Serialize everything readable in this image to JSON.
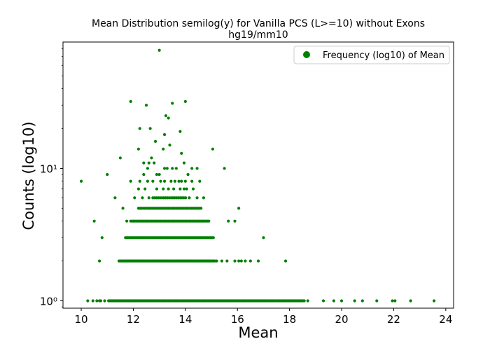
{
  "chart_data": {
    "type": "scatter",
    "title": "Mean Distribution semilog(y) for Vanilla PCS (L>=10) without Exons",
    "subtitle": "hg19/mm10",
    "xlabel": "Mean",
    "ylabel": "Counts (log10)",
    "xlim": [
      9.3,
      24.3
    ],
    "ylim": [
      0.88,
      90
    ],
    "yscale": "log",
    "x_ticks": [
      10,
      12,
      14,
      16,
      18,
      20,
      22,
      24
    ],
    "x_tick_labels": [
      "10",
      "12",
      "14",
      "16",
      "18",
      "20",
      "22",
      "24"
    ],
    "y_ticks": [
      1,
      10
    ],
    "y_tick_labels": [
      "10⁰",
      "10¹"
    ],
    "grid": false,
    "legend_position": "upper right",
    "legend": [
      {
        "label": "Frequency (log10) of Mean",
        "color": "#008000"
      }
    ],
    "color": "#008000",
    "series": [
      {
        "name": "Frequency (log10) of Mean",
        "points": [
          [
            10.0,
            8
          ],
          [
            11.0,
            9
          ],
          [
            11.9,
            32
          ],
          [
            12.5,
            30
          ],
          [
            13.0,
            78
          ],
          [
            13.5,
            31
          ],
          [
            14.0,
            32
          ],
          [
            13.25,
            25
          ],
          [
            13.35,
            24
          ],
          [
            12.65,
            20
          ],
          [
            13.8,
            19
          ],
          [
            12.25,
            20
          ],
          [
            13.2,
            18
          ],
          [
            12.85,
            16
          ],
          [
            13.4,
            15
          ],
          [
            12.2,
            14
          ],
          [
            13.15,
            14
          ],
          [
            15.05,
            14
          ],
          [
            13.85,
            13
          ],
          [
            11.5,
            12
          ],
          [
            12.7,
            12
          ],
          [
            12.6,
            11
          ],
          [
            13.95,
            11
          ],
          [
            12.4,
            11
          ],
          [
            12.8,
            11
          ],
          [
            13.2,
            10
          ],
          [
            13.3,
            10
          ],
          [
            13.5,
            10
          ],
          [
            13.65,
            10
          ],
          [
            14.25,
            10
          ],
          [
            14.45,
            10
          ],
          [
            12.55,
            10
          ],
          [
            15.5,
            10
          ],
          [
            12.4,
            9
          ],
          [
            12.9,
            9
          ],
          [
            13.0,
            9
          ],
          [
            14.1,
            9
          ],
          [
            11.9,
            8
          ],
          [
            12.25,
            8
          ],
          [
            12.55,
            8
          ],
          [
            12.75,
            8
          ],
          [
            13.05,
            8
          ],
          [
            13.2,
            8
          ],
          [
            13.45,
            8
          ],
          [
            13.6,
            8
          ],
          [
            13.75,
            8
          ],
          [
            13.85,
            8
          ],
          [
            14.0,
            8
          ],
          [
            14.25,
            8
          ],
          [
            14.55,
            8
          ],
          [
            12.2,
            7
          ],
          [
            12.45,
            7
          ],
          [
            12.9,
            7
          ],
          [
            13.15,
            7
          ],
          [
            13.35,
            7
          ],
          [
            13.55,
            7
          ],
          [
            13.8,
            7
          ],
          [
            13.95,
            7
          ],
          [
            14.05,
            7
          ],
          [
            14.3,
            7
          ],
          [
            11.3,
            6
          ],
          [
            12.05,
            6
          ],
          [
            12.35,
            6
          ],
          [
            12.6,
            6
          ],
          [
            14.15,
            6
          ],
          [
            14.45,
            6
          ],
          [
            14.7,
            6
          ],
          [
            11.6,
            5
          ],
          [
            16.05,
            5
          ],
          [
            10.5,
            4
          ],
          [
            11.75,
            4
          ],
          [
            15.9,
            4
          ],
          [
            15.65,
            4
          ],
          [
            10.8,
            3
          ],
          [
            17.0,
            3
          ],
          [
            10.7,
            2
          ],
          [
            17.85,
            2
          ],
          [
            16.8,
            2
          ],
          [
            16.5,
            2
          ],
          [
            16.3,
            2
          ],
          [
            16.15,
            2
          ],
          [
            16.05,
            2
          ],
          [
            15.9,
            2
          ],
          [
            15.6,
            2
          ],
          [
            15.4,
            2
          ],
          [
            15.2,
            2
          ],
          [
            10.25,
            1
          ],
          [
            10.45,
            1
          ],
          [
            10.6,
            1
          ],
          [
            10.7,
            1
          ],
          [
            10.75,
            1
          ],
          [
            10.9,
            1
          ],
          [
            18.7,
            1
          ],
          [
            19.3,
            1
          ],
          [
            19.7,
            1
          ],
          [
            20.0,
            1
          ],
          [
            20.5,
            1
          ],
          [
            20.8,
            1
          ],
          [
            21.35,
            1
          ],
          [
            21.95,
            1
          ],
          [
            22.05,
            1
          ],
          [
            22.65,
            1
          ],
          [
            23.55,
            1
          ]
        ],
        "bands": [
          {
            "y": 1,
            "x_start": 11.05,
            "x_end": 18.6,
            "step": 0.045
          },
          {
            "y": 2,
            "x_start": 11.45,
            "x_end": 15.15,
            "step": 0.04
          },
          {
            "y": 3,
            "x_start": 11.7,
            "x_end": 15.1,
            "step": 0.045
          },
          {
            "y": 4,
            "x_start": 11.9,
            "x_end": 14.9,
            "step": 0.05
          },
          {
            "y": 5,
            "x_start": 12.2,
            "x_end": 14.65,
            "step": 0.06
          },
          {
            "y": 6,
            "x_start": 12.75,
            "x_end": 14.05,
            "step": 0.07
          }
        ]
      }
    ]
  }
}
